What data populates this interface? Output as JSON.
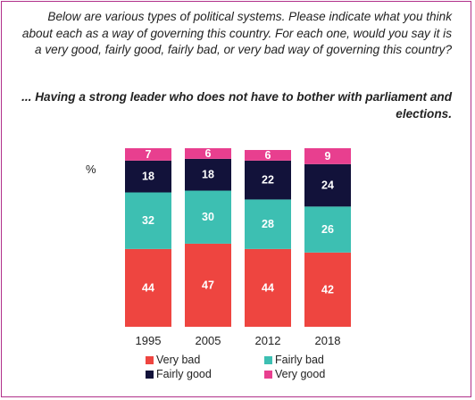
{
  "question": "Below are various types of political systems. Please indicate what you think about each as a way of governing this country. For each one, would you say it is a very good, fairly good, fairly bad, or very bad way of governing this country?",
  "subquestion": "... Having a strong leader who does not have to bother with parliament and elections.",
  "chart_data": {
    "type": "bar",
    "stacked": true,
    "unit_label": "%",
    "categories": [
      "1995",
      "2005",
      "2012",
      "2018"
    ],
    "ylim": [
      0,
      101
    ],
    "series": [
      {
        "name": "Very bad",
        "color": "#ee4540",
        "values": [
          44,
          47,
          44,
          42
        ]
      },
      {
        "name": "Fairly bad",
        "color": "#3dbfb2",
        "values": [
          32,
          30,
          28,
          26
        ]
      },
      {
        "name": "Fairly good",
        "color": "#12123a",
        "values": [
          18,
          18,
          22,
          24
        ]
      },
      {
        "name": "Very good",
        "color": "#e83f8f",
        "values": [
          7,
          6,
          6,
          9
        ]
      }
    ],
    "legend": [
      [
        "Very bad",
        "Fairly bad"
      ],
      [
        "Fairly good",
        "Very good"
      ]
    ]
  }
}
